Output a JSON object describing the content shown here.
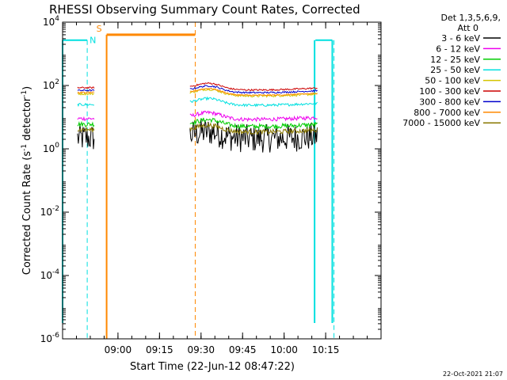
{
  "chart_data": {
    "type": "line",
    "title": "RHESSI Observing Summary Count Rates, Corrected",
    "xlabel": "Start Time (22-Jun-12 08:47:22)",
    "ylabel_parts": [
      "Corrected Count Rate (s",
      "-1",
      " detector",
      "-1",
      ")"
    ],
    "yscale": "log",
    "ylim": [
      1e-06,
      10000.0
    ],
    "xlim_min": [
      -7.4,
      107.6
    ],
    "x_tick_labels": [
      {
        "label": "09:00",
        "min": 12.6
      },
      {
        "label": "09:15",
        "min": 27.6
      },
      {
        "label": "09:30",
        "min": 42.6
      },
      {
        "label": "09:45",
        "min": 57.6
      },
      {
        "label": "10:00",
        "min": 72.6
      },
      {
        "label": "10:15",
        "min": 87.6
      }
    ],
    "y_ticks": [
      {
        "exp": "-6",
        "value": 1e-06
      },
      {
        "exp": "-4",
        "value": 0.0001
      },
      {
        "exp": "-2",
        "value": 0.01
      },
      {
        "exp": "0",
        "value": 1
      },
      {
        "exp": "2",
        "value": 100.0
      },
      {
        "exp": "4",
        "value": 10000.0
      }
    ],
    "legend_header": [
      "Det 1,3,5,6,9,",
      "Att 0"
    ],
    "legend_placement": "right",
    "series": [
      {
        "name": "3 - 6 keV",
        "color": "#000000",
        "level_seg1": 2.2,
        "level_seg2": 2.5,
        "noise": 0.9
      },
      {
        "name": "6 - 12 keV",
        "color": "#ee00ee",
        "level_seg1": 9,
        "level_seg2": 10,
        "noise": 0.12
      },
      {
        "name": "12 - 25 keV",
        "color": "#00cc00",
        "level_seg1": 6,
        "level_seg2": 6,
        "noise": 0.15
      },
      {
        "name": "25 - 50 keV",
        "color": "#00e0e0",
        "level_seg1": 25,
        "level_seg2": 28,
        "noise": 0.08
      },
      {
        "name": "50 - 100 keV",
        "color": "#d4c400",
        "level_seg1": 55,
        "level_seg2": 55,
        "noise": 0.07
      },
      {
        "name": "100 - 300 keV",
        "color": "#cc0000",
        "level_seg1": 85,
        "level_seg2": 85,
        "noise": 0.05
      },
      {
        "name": "300 - 800 keV",
        "color": "#0000cc",
        "level_seg1": 70,
        "level_seg2": 70,
        "noise": 0.05
      },
      {
        "name": "800 - 7000 keV",
        "color": "#ff8800",
        "level_seg1": 60,
        "level_seg2": 58,
        "noise": 0.04
      },
      {
        "name": "7000 - 15000 keV",
        "color": "#887700",
        "level_seg1": 4,
        "level_seg2": 4,
        "noise": 0.15
      }
    ],
    "segments_min": [
      [
        -2,
        4
      ],
      [
        38.6,
        84.6
      ]
    ],
    "saa_flag": {
      "label": "S",
      "color": "#ff8800",
      "start_min": 8.5,
      "end_min": 40.5,
      "value": 4000
    },
    "night_flag": {
      "label": "N",
      "color": "#00e0e0",
      "value": 2700,
      "spans_min": [
        [
          -7.4,
          1.5
        ],
        [
          83.9,
          90.0
        ]
      ],
      "solid_lines_min": [
        -7.4,
        83.6,
        90.0
      ],
      "dashed_lines_min": [
        1.5,
        90.6
      ]
    },
    "orange_lines": {
      "solid_min": 8.5,
      "dashed_min": 40.5
    },
    "grid": false
  },
  "footer": {
    "timestamp": "22-Oct-2021 21:07"
  }
}
